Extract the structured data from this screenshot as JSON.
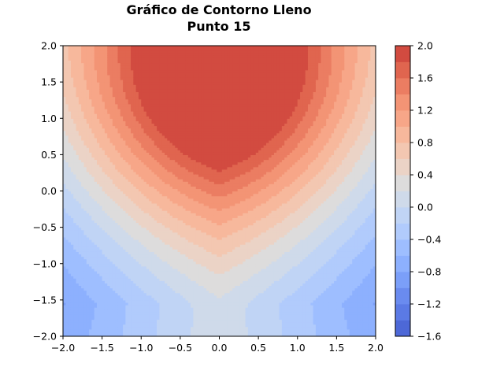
{
  "chart_data": {
    "type": "heatmap",
    "subtype": "filled-contour",
    "title_lines": [
      "Gráfico de Contorno Lleno",
      "Punto 15"
    ],
    "x_range": [
      -2.0,
      2.0
    ],
    "y_range": [
      -2.0,
      2.0
    ],
    "x_tick_labels": [
      "−2.0",
      "−1.5",
      "−1.0",
      "−0.5",
      "0.0",
      "0.5",
      "1.0",
      "1.5",
      "2.0"
    ],
    "y_tick_labels": [
      "−2.0",
      "−1.5",
      "−1.0",
      "−0.5",
      "0.0",
      "0.5",
      "1.0",
      "1.5",
      "2.0"
    ],
    "colormap": "coolwarm",
    "contour_levels": [
      -1.6,
      -1.4,
      -1.2,
      -1.0,
      -0.8,
      -0.6,
      -0.4,
      -0.2,
      0.0,
      0.2,
      0.4,
      0.6,
      0.8,
      1.0,
      1.2,
      1.4,
      1.6,
      1.8,
      2.0
    ],
    "level_colors": [
      "#4d68d7",
      "#5b7ae5",
      "#6a8bef",
      "#7b9ff9",
      "#8db0fe",
      "#9ebeff",
      "#b1cbfc",
      "#c0d4f5",
      "#cfdaea",
      "#dddcdc",
      "#ebd3c6",
      "#f3c7b1",
      "#f7b89c",
      "#f7a688",
      "#f39475",
      "#eb7d62",
      "#e0654f",
      "#d24b40",
      "#c0282f"
    ],
    "colorbar_tick_labels": [
      "−1.6",
      "−1.2",
      "−0.8",
      "−0.4",
      "0.0",
      "0.4",
      "0.8",
      "1.2",
      "1.6",
      "2.0"
    ],
    "colorbar_tick_values": [
      -1.6,
      -1.2,
      -0.8,
      -0.4,
      0.0,
      0.4,
      0.8,
      1.2,
      1.6,
      2.0
    ],
    "grid": false
  }
}
